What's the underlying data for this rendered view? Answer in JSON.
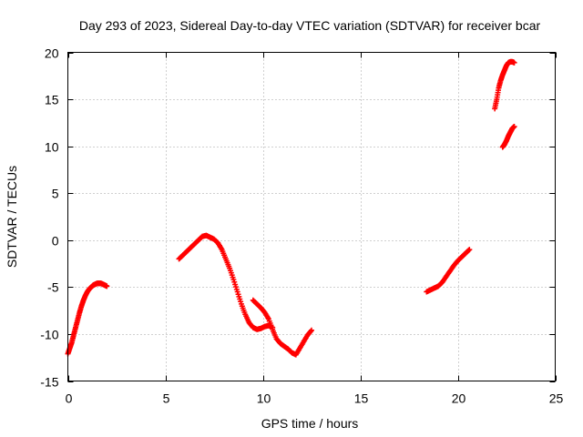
{
  "chart_data": {
    "type": "scatter",
    "title": "Day 293 of 2023, Sidereal Day-to-day VTEC variation (SDTVAR) for receiver bcar",
    "xlabel": "GPS time / hours",
    "ylabel": "SDTVAR / TECUs",
    "xlim": [
      0,
      25
    ],
    "ylim": [
      -15,
      20
    ],
    "xticks": [
      0,
      5,
      10,
      15,
      20,
      25
    ],
    "yticks": [
      -15,
      -10,
      -5,
      0,
      5,
      10,
      15,
      20
    ],
    "grid": true,
    "marker": "plus",
    "color": "#ff0000",
    "series": [
      {
        "name": "segment-1",
        "x": [
          0.0,
          0.1,
          0.2,
          0.3,
          0.4,
          0.5,
          0.6,
          0.7,
          0.8,
          0.9,
          1.0,
          1.1,
          1.2,
          1.3,
          1.4,
          1.5,
          1.6,
          1.7,
          1.8,
          1.9,
          2.0
        ],
        "y": [
          -12.1,
          -11.5,
          -10.9,
          -10.1,
          -9.3,
          -8.5,
          -7.7,
          -7.0,
          -6.4,
          -5.9,
          -5.5,
          -5.2,
          -5.0,
          -4.8,
          -4.7,
          -4.6,
          -4.6,
          -4.6,
          -4.7,
          -4.8,
          -4.9
        ]
      },
      {
        "name": "segment-2",
        "x": [
          5.7,
          5.9,
          6.1,
          6.3,
          6.5,
          6.7,
          6.9,
          7.1,
          7.3,
          7.5,
          7.7,
          7.9,
          8.1,
          8.3,
          8.5,
          8.7,
          8.9,
          9.1,
          9.3,
          9.5,
          9.7,
          9.9,
          10.1,
          10.3,
          10.5
        ],
        "y": [
          -2.0,
          -1.6,
          -1.2,
          -0.8,
          -0.4,
          0.0,
          0.4,
          0.5,
          0.3,
          0.1,
          -0.3,
          -1.0,
          -2.0,
          -3.0,
          -4.2,
          -5.5,
          -6.8,
          -7.9,
          -8.8,
          -9.3,
          -9.5,
          -9.4,
          -9.2,
          -9.1,
          -9.3
        ]
      },
      {
        "name": "segment-3",
        "x": [
          9.5,
          9.7,
          9.9,
          10.1,
          10.3,
          10.5,
          10.7,
          10.9,
          11.1,
          11.3,
          11.5,
          11.7,
          11.9,
          12.1,
          12.3,
          12.5
        ],
        "y": [
          -6.4,
          -6.8,
          -7.2,
          -7.7,
          -8.4,
          -9.5,
          -10.5,
          -11.0,
          -11.3,
          -11.6,
          -12.0,
          -12.2,
          -11.5,
          -10.8,
          -10.1,
          -9.6
        ]
      },
      {
        "name": "segment-4",
        "x": [
          18.4,
          18.6,
          18.8,
          19.0,
          19.2,
          19.4,
          19.6,
          19.8,
          20.0,
          20.2,
          20.4,
          20.6
        ],
        "y": [
          -5.5,
          -5.3,
          -5.1,
          -4.9,
          -4.5,
          -3.9,
          -3.3,
          -2.7,
          -2.2,
          -1.8,
          -1.4,
          -1.0
        ]
      },
      {
        "name": "segment-5",
        "x": [
          21.9,
          22.0,
          22.1,
          22.2,
          22.3,
          22.4,
          22.5,
          22.6,
          22.7,
          22.8,
          22.9
        ],
        "y": [
          14.0,
          15.0,
          16.2,
          17.0,
          17.6,
          18.1,
          18.6,
          18.9,
          19.0,
          19.0,
          18.9
        ]
      },
      {
        "name": "segment-6",
        "x": [
          22.3,
          22.4,
          22.5,
          22.6,
          22.7,
          22.8,
          22.9
        ],
        "y": [
          9.9,
          10.2,
          10.6,
          11.1,
          11.5,
          11.9,
          12.1
        ]
      }
    ]
  }
}
